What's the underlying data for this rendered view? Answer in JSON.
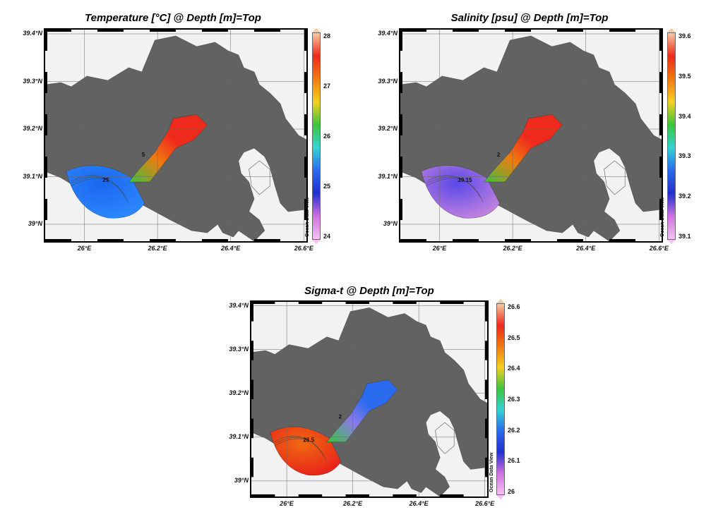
{
  "panels": [
    {
      "id": "temperature",
      "title": "Temperature [°C] @ Depth [m]=Top",
      "colorbar_ticks": [
        "28",
        "27",
        "26",
        "25",
        "24"
      ],
      "contour_labels": [
        "25",
        "5"
      ],
      "credit": "Ocean Data View",
      "colors": {
        "outer": "#2e8bff",
        "inner": "#1a66ee",
        "channel": "#3cc43c",
        "bay": "#ee2a1c",
        "bay_edge": "#f07a10"
      }
    },
    {
      "id": "salinity",
      "title": "Salinity [psu] @ Depth [m]=Top",
      "colorbar_ticks": [
        "39.6",
        "39.5",
        "39.4",
        "39.3",
        "39.2",
        "39.1"
      ],
      "contour_labels": [
        "39.15",
        "2"
      ],
      "credit": "Ocean Data View",
      "colors": {
        "outer": "#cc88dd",
        "inner": "#5a48e8",
        "channel": "#3cc43c",
        "bay": "#ee2a1c",
        "bay_edge": "#f07a10"
      }
    },
    {
      "id": "sigma_t",
      "title": "Sigma-t @ Depth [m]=Top",
      "colorbar_ticks": [
        "26.6",
        "26.5",
        "26.4",
        "26.3",
        "26.2",
        "26.1",
        "26"
      ],
      "contour_labels": [
        "26.5",
        "2"
      ],
      "credit": "Ocean Data View",
      "colors": {
        "outer": "#e81c1c",
        "inner": "#f06a10",
        "channel": "#3cc43c",
        "bay": "#2a6aee",
        "bay_edge": "#8a7ae8"
      }
    }
  ],
  "axes": {
    "lat_labels": [
      "39.4°N",
      "39.3°N",
      "39.2°N",
      "39.1°N",
      "39°N"
    ],
    "lon_labels": [
      "26°E",
      "26.2°E",
      "26.4°E",
      "26.6°E"
    ]
  },
  "land_color": "#626262",
  "sea_color": "#f2f2f2"
}
